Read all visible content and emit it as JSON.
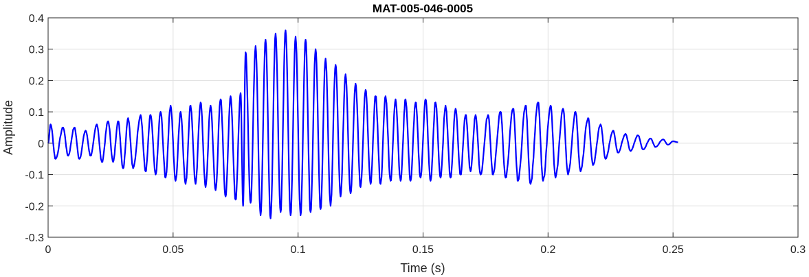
{
  "chart_data": {
    "type": "line",
    "title": "MAT-005-046-0005",
    "xlabel": "Time (s)",
    "ylabel": "Amplitude",
    "xlim": [
      0,
      0.3
    ],
    "ylim": [
      -0.3,
      0.4
    ],
    "xticks": [
      0,
      0.05,
      0.1,
      0.15,
      0.2,
      0.25,
      0.3
    ],
    "xtick_labels": [
      "0",
      "0.05",
      "0.1",
      "0.15",
      "0.2",
      "0.25",
      "0.3"
    ],
    "yticks": [
      -0.3,
      -0.2,
      -0.1,
      0,
      0.1,
      0.2,
      0.3,
      0.4
    ],
    "ytick_labels": [
      "-0.3",
      "-0.2",
      "-0.1",
      "0",
      "0.1",
      "0.2",
      "0.3",
      "0.4"
    ],
    "grid": true,
    "legend": "none",
    "series": [
      {
        "color": "#0000ff",
        "x_start": 0,
        "x_end": 0.252,
        "peaks": [
          [
            0.001,
            0.06
          ],
          [
            0.003,
            -0.05
          ],
          [
            0.006,
            0.05
          ],
          [
            0.008,
            -0.04
          ],
          [
            0.0105,
            0.05
          ],
          [
            0.0125,
            -0.05
          ],
          [
            0.015,
            0.04
          ],
          [
            0.017,
            -0.04
          ],
          [
            0.0195,
            0.06
          ],
          [
            0.0215,
            -0.06
          ],
          [
            0.024,
            0.07
          ],
          [
            0.026,
            -0.06
          ],
          [
            0.028,
            0.07
          ],
          [
            0.03,
            -0.08
          ],
          [
            0.032,
            0.08
          ],
          [
            0.034,
            -0.08
          ],
          [
            0.037,
            0.09
          ],
          [
            0.039,
            -0.09
          ],
          [
            0.041,
            0.09
          ],
          [
            0.043,
            -0.1
          ],
          [
            0.045,
            0.1
          ],
          [
            0.047,
            -0.11
          ],
          [
            0.049,
            0.12
          ],
          [
            0.051,
            -0.12
          ],
          [
            0.053,
            0.1
          ],
          [
            0.055,
            -0.13
          ],
          [
            0.057,
            0.12
          ],
          [
            0.059,
            -0.13
          ],
          [
            0.061,
            0.13
          ],
          [
            0.063,
            -0.14
          ],
          [
            0.065,
            0.12
          ],
          [
            0.067,
            -0.15
          ],
          [
            0.069,
            0.14
          ],
          [
            0.071,
            -0.17
          ],
          [
            0.073,
            0.15
          ],
          [
            0.075,
            -0.18
          ],
          [
            0.077,
            0.16
          ],
          [
            0.078,
            -0.2
          ],
          [
            0.079,
            0.29
          ],
          [
            0.081,
            -0.19
          ],
          [
            0.083,
            0.31
          ],
          [
            0.085,
            -0.23
          ],
          [
            0.087,
            0.33
          ],
          [
            0.089,
            -0.24
          ],
          [
            0.091,
            0.35
          ],
          [
            0.093,
            -0.22
          ],
          [
            0.095,
            0.36
          ],
          [
            0.097,
            -0.23
          ],
          [
            0.099,
            0.34
          ],
          [
            0.101,
            -0.23
          ],
          [
            0.103,
            0.33
          ],
          [
            0.105,
            -0.22
          ],
          [
            0.107,
            0.3
          ],
          [
            0.109,
            -0.21
          ],
          [
            0.111,
            0.27
          ],
          [
            0.113,
            -0.2
          ],
          [
            0.115,
            0.25
          ],
          [
            0.117,
            -0.17
          ],
          [
            0.119,
            0.22
          ],
          [
            0.121,
            -0.16
          ],
          [
            0.123,
            0.19
          ],
          [
            0.125,
            -0.14
          ],
          [
            0.127,
            0.17
          ],
          [
            0.129,
            -0.13
          ],
          [
            0.131,
            0.15
          ],
          [
            0.133,
            -0.13
          ],
          [
            0.135,
            0.15
          ],
          [
            0.137,
            -0.12
          ],
          [
            0.139,
            0.14
          ],
          [
            0.141,
            -0.12
          ],
          [
            0.143,
            0.14
          ],
          [
            0.145,
            -0.12
          ],
          [
            0.147,
            0.13
          ],
          [
            0.149,
            -0.11
          ],
          [
            0.151,
            0.14
          ],
          [
            0.153,
            -0.12
          ],
          [
            0.155,
            0.13
          ],
          [
            0.157,
            -0.11
          ],
          [
            0.159,
            0.12
          ],
          [
            0.161,
            -0.11
          ],
          [
            0.163,
            0.11
          ],
          [
            0.165,
            -0.1
          ],
          [
            0.167,
            0.09
          ],
          [
            0.169,
            -0.09
          ],
          [
            0.171,
            0.09
          ],
          [
            0.173,
            -0.1
          ],
          [
            0.176,
            0.09
          ],
          [
            0.178,
            -0.1
          ],
          [
            0.181,
            0.1
          ],
          [
            0.183,
            -0.11
          ],
          [
            0.186,
            0.11
          ],
          [
            0.188,
            -0.12
          ],
          [
            0.191,
            0.12
          ],
          [
            0.193,
            -0.13
          ],
          [
            0.196,
            0.13
          ],
          [
            0.198,
            -0.12
          ],
          [
            0.201,
            0.12
          ],
          [
            0.203,
            -0.11
          ],
          [
            0.206,
            0.11
          ],
          [
            0.208,
            -0.1
          ],
          [
            0.211,
            0.1
          ],
          [
            0.213,
            -0.09
          ],
          [
            0.216,
            0.08
          ],
          [
            0.218,
            -0.07
          ],
          [
            0.221,
            0.06
          ],
          [
            0.223,
            -0.05
          ],
          [
            0.226,
            0.04
          ],
          [
            0.228,
            -0.03
          ],
          [
            0.231,
            0.03
          ],
          [
            0.233,
            -0.025
          ],
          [
            0.236,
            0.025
          ],
          [
            0.238,
            -0.02
          ],
          [
            0.241,
            0.015
          ],
          [
            0.243,
            -0.012
          ],
          [
            0.246,
            0.012
          ],
          [
            0.248,
            -0.005
          ],
          [
            0.25,
            0.006
          ],
          [
            0.252,
            0.003
          ]
        ]
      }
    ]
  }
}
